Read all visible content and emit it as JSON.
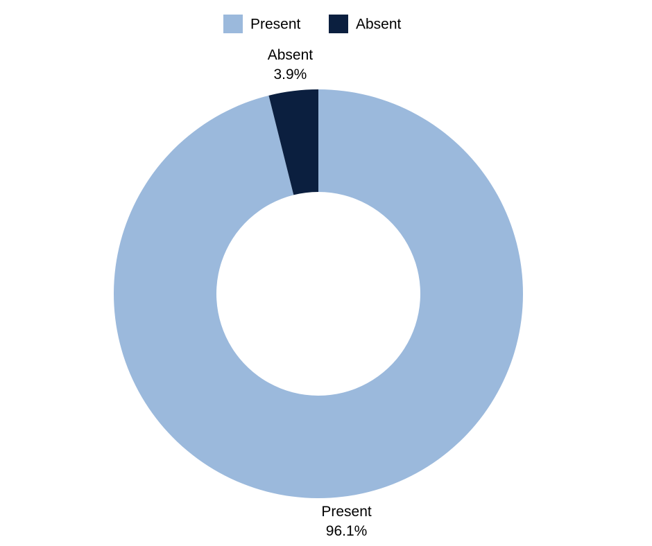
{
  "chart_data": {
    "type": "pie",
    "donut": true,
    "categories": [
      "Present",
      "Absent"
    ],
    "values": [
      96.1,
      3.9
    ],
    "value_labels": [
      "96.1%",
      "3.9%"
    ],
    "colors": [
      "#9bb9dc",
      "#0b1f3f"
    ],
    "legend": "top"
  }
}
